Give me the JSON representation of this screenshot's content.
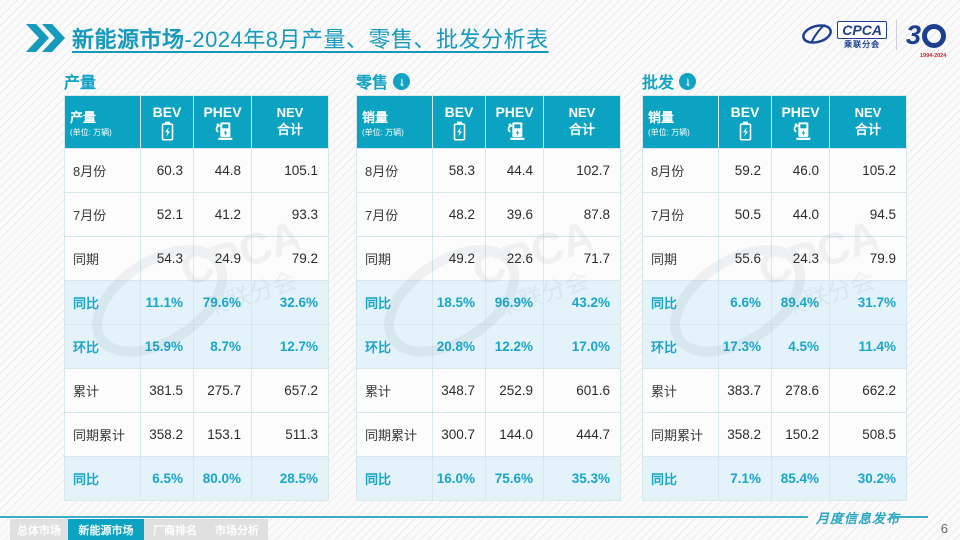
{
  "page": {
    "title_bold": "新能源市场",
    "title_rest": "-2024年8月产量、零售、批发分析表",
    "footer_label": "月度信息发布",
    "page_number": "6"
  },
  "logos": {
    "cpca_name": "CPCA",
    "cpca_sub": "乘联分会",
    "anniversary_3": "3",
    "anniversary_years": "1994-2024",
    "watermark_text": "CPCA",
    "watermark_sub": "乘联分会"
  },
  "icons": {
    "down_arrow": "↓"
  },
  "colors": {
    "teal": "#0ba3c1",
    "title_teal": "#1599bd",
    "highlight_bg": "#e3f3f9",
    "highlight_text": "#19a6c9",
    "logo_blue": "#1c3f8f",
    "footer_line": "#3dacc7"
  },
  "nav_tabs": [
    {
      "label": "总体市场",
      "active": false
    },
    {
      "label": "新能源市场",
      "active": true
    },
    {
      "label": "厂商排名",
      "active": false
    },
    {
      "label": "市场分析",
      "active": false
    }
  ],
  "chart_data": [
    {
      "type": "table",
      "section_title": "产量",
      "has_arrow": false,
      "unit_label": "产量",
      "unit_sub": "(单位: 万辆)",
      "col_headers": [
        "BEV",
        "PHEV"
      ],
      "nev_line1": "NEV",
      "nev_line2": "合计",
      "rows": [
        {
          "label": "8月份",
          "values": [
            "60.3",
            "44.8",
            "105.1"
          ],
          "highlight": false
        },
        {
          "label": "7月份",
          "values": [
            "52.1",
            "41.2",
            "93.3"
          ],
          "highlight": false
        },
        {
          "label": "同期",
          "values": [
            "54.3",
            "24.9",
            "79.2"
          ],
          "highlight": false
        },
        {
          "label": "同比",
          "values": [
            "11.1%",
            "79.6%",
            "32.6%"
          ],
          "highlight": true
        },
        {
          "label": "环比",
          "values": [
            "15.9%",
            "8.7%",
            "12.7%"
          ],
          "highlight": true
        },
        {
          "label": "累计",
          "values": [
            "381.5",
            "275.7",
            "657.2"
          ],
          "highlight": false
        },
        {
          "label": "同期累计",
          "values": [
            "358.2",
            "153.1",
            "511.3"
          ],
          "highlight": false
        },
        {
          "label": "同比",
          "values": [
            "6.5%",
            "80.0%",
            "28.5%"
          ],
          "highlight": true
        }
      ]
    },
    {
      "type": "table",
      "section_title": "零售",
      "has_arrow": true,
      "unit_label": "销量",
      "unit_sub": "(单位: 万辆)",
      "col_headers": [
        "BEV",
        "PHEV"
      ],
      "nev_line1": "NEV",
      "nev_line2": "合计",
      "rows": [
        {
          "label": "8月份",
          "values": [
            "58.3",
            "44.4",
            "102.7"
          ],
          "highlight": false
        },
        {
          "label": "7月份",
          "values": [
            "48.2",
            "39.6",
            "87.8"
          ],
          "highlight": false
        },
        {
          "label": "同期",
          "values": [
            "49.2",
            "22.6",
            "71.7"
          ],
          "highlight": false
        },
        {
          "label": "同比",
          "values": [
            "18.5%",
            "96.9%",
            "43.2%"
          ],
          "highlight": true
        },
        {
          "label": "环比",
          "values": [
            "20.8%",
            "12.2%",
            "17.0%"
          ],
          "highlight": true
        },
        {
          "label": "累计",
          "values": [
            "348.7",
            "252.9",
            "601.6"
          ],
          "highlight": false
        },
        {
          "label": "同期累计",
          "values": [
            "300.7",
            "144.0",
            "444.7"
          ],
          "highlight": false
        },
        {
          "label": "同比",
          "values": [
            "16.0%",
            "75.6%",
            "35.3%"
          ],
          "highlight": true
        }
      ]
    },
    {
      "type": "table",
      "section_title": "批发",
      "has_arrow": true,
      "unit_label": "销量",
      "unit_sub": "(单位: 万辆)",
      "col_headers": [
        "BEV",
        "PHEV"
      ],
      "nev_line1": "NEV",
      "nev_line2": "合计",
      "rows": [
        {
          "label": "8月份",
          "values": [
            "59.2",
            "46.0",
            "105.2"
          ],
          "highlight": false
        },
        {
          "label": "7月份",
          "values": [
            "50.5",
            "44.0",
            "94.5"
          ],
          "highlight": false
        },
        {
          "label": "同期",
          "values": [
            "55.6",
            "24.3",
            "79.9"
          ],
          "highlight": false
        },
        {
          "label": "同比",
          "values": [
            "6.6%",
            "89.4%",
            "31.7%"
          ],
          "highlight": true
        },
        {
          "label": "环比",
          "values": [
            "17.3%",
            "4.5%",
            "11.4%"
          ],
          "highlight": true
        },
        {
          "label": "累计",
          "values": [
            "383.7",
            "278.6",
            "662.2"
          ],
          "highlight": false
        },
        {
          "label": "同期累计",
          "values": [
            "358.2",
            "150.2",
            "508.5"
          ],
          "highlight": false
        },
        {
          "label": "同比",
          "values": [
            "7.1%",
            "85.4%",
            "30.2%"
          ],
          "highlight": true
        }
      ]
    }
  ]
}
